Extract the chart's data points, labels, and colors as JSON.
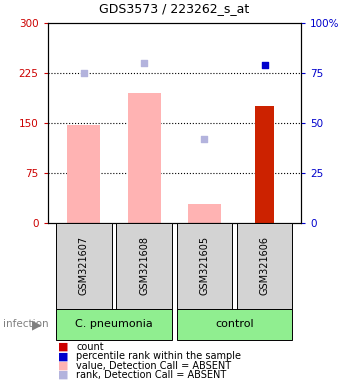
{
  "title": "GDS3573 / 223262_s_at",
  "samples": [
    "GSM321607",
    "GSM321608",
    "GSM321605",
    "GSM321606"
  ],
  "pink_bars": [
    147,
    195,
    28,
    0
  ],
  "red_bars": [
    0,
    0,
    0,
    175
  ],
  "light_blue_squares_pct": [
    75,
    80,
    42,
    null
  ],
  "dark_blue_squares_pct": [
    null,
    null,
    null,
    79
  ],
  "ylim_left": [
    0,
    300
  ],
  "ylim_right": [
    0,
    100
  ],
  "yticks_left": [
    0,
    75,
    150,
    225,
    300
  ],
  "yticks_right": [
    0,
    25,
    50,
    75,
    100
  ],
  "ytick_labels_left": [
    "0",
    "75",
    "150",
    "225",
    "300"
  ],
  "ytick_labels_right": [
    "0",
    "25",
    "50",
    "75",
    "100%"
  ],
  "hlines": [
    75,
    150,
    225
  ],
  "left_axis_color": "#cc0000",
  "right_axis_color": "#0000cc",
  "bar_width": 0.55,
  "red_bar_width": 0.32,
  "group_label_cpneumonia": "C. pneumonia",
  "group_label_control": "control",
  "infection_label": "infection",
  "group_color": "#90ee90",
  "sample_box_color": "#d3d3d3",
  "legend_items": [
    {
      "label": "count",
      "color": "#cc0000"
    },
    {
      "label": "percentile rank within the sample",
      "color": "#0000cc"
    },
    {
      "label": "value, Detection Call = ABSENT",
      "color": "#ffb3b3"
    },
    {
      "label": "rank, Detection Call = ABSENT",
      "color": "#b3b3dd"
    }
  ]
}
